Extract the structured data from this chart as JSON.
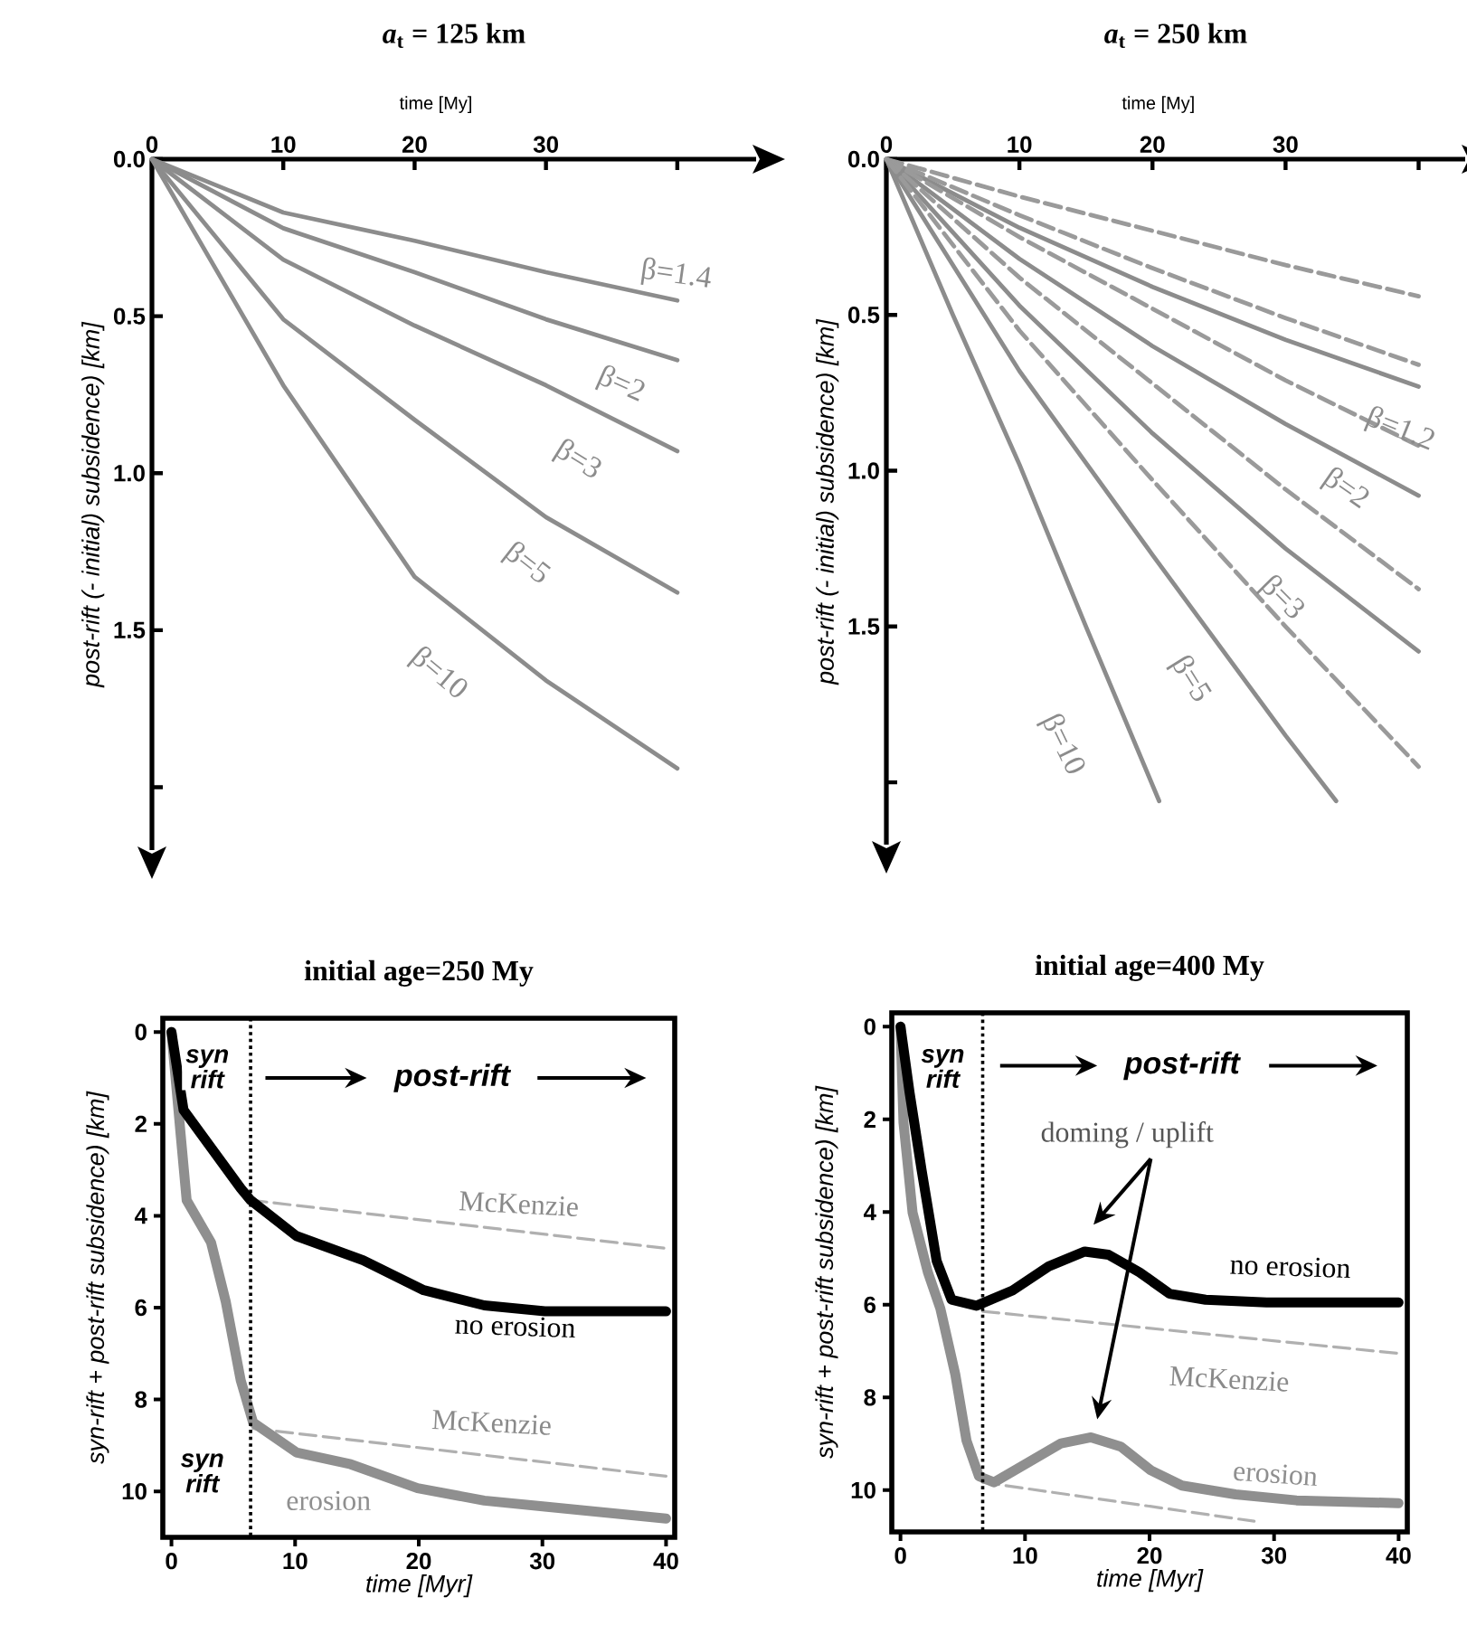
{
  "chart_data": [
    {
      "type": "line",
      "title": "*a*$_{t}$ = 125 km",
      "xlabel": "time [My]",
      "ylabel": "post-rift (- initial) subsidence) [km]",
      "xlim": [
        0,
        46
      ],
      "ylim": [
        2.2,
        0
      ],
      "xticks": [
        0,
        10,
        20,
        30,
        {
          "value": 40,
          "label": null
        }
      ],
      "yticks": [
        {
          "value": 0,
          "label": "0.0"
        },
        0.5,
        {
          "value": 1,
          "label": "1.0"
        },
        1.5,
        {
          "value": 2,
          "label": null
        }
      ],
      "x": [
        0,
        10,
        20,
        30,
        40
      ],
      "series": [
        {
          "name": "β=1.4",
          "color": "#8c8c8c",
          "values": [
            0,
            0.17,
            0.26,
            0.36,
            0.45
          ]
        },
        {
          "name": "β=2",
          "color": "#8c8c8c",
          "values": [
            0,
            0.22,
            0.36,
            0.51,
            0.64
          ]
        },
        {
          "name": "β=3",
          "color": "#8c8c8c",
          "values": [
            0,
            0.32,
            0.53,
            0.72,
            0.93
          ]
        },
        {
          "name": "β=5",
          "color": "#8c8c8c",
          "values": [
            0,
            0.51,
            0.83,
            1.14,
            1.38
          ]
        },
        {
          "name": "β=10",
          "color": "#8c8c8c",
          "values": [
            0,
            0.72,
            1.33,
            1.66,
            1.94
          ]
        }
      ]
    },
    {
      "type": "line",
      "title": "*a*$_{t}$ = 250 km",
      "xlabel": "time [My]",
      "ylabel": "post-rift (- initial) subsidence) [km]",
      "xlim": [
        0,
        43.5
      ],
      "ylim": [
        2.2,
        0
      ],
      "xticks": [
        0,
        10,
        20,
        30,
        {
          "value": 40,
          "label": null
        }
      ],
      "yticks": [
        {
          "value": 0,
          "label": "0.0"
        },
        0.5,
        {
          "value": 1,
          "label": "1.0"
        },
        1.5,
        {
          "value": 2,
          "label": null
        }
      ],
      "x": [
        0,
        10,
        20,
        30,
        40
      ],
      "series": [
        {
          "name": "β=1.2",
          "color": "#8c8c8c",
          "values": [
            0,
            0.22,
            0.41,
            0.58,
            0.73
          ]
        },
        {
          "name": "β=2",
          "color": "#8c8c8c",
          "values": [
            0,
            0.32,
            0.6,
            0.85,
            1.08
          ]
        },
        {
          "name": "β=3",
          "color": "#8c8c8c",
          "values": [
            0,
            0.47,
            0.88,
            1.25,
            1.58
          ]
        },
        {
          "name": "β=5",
          "color": "#8c8c8c",
          "x": [
            0,
            10,
            20,
            30,
            33.8
          ],
          "values": [
            0,
            0.68,
            1.27,
            1.85,
            2.06
          ]
        },
        {
          "name": "β=10",
          "color": "#8c8c8c",
          "x": [
            0,
            5,
            10,
            15,
            20.5
          ],
          "values": [
            0,
            0.5,
            0.98,
            1.5,
            2.06
          ]
        },
        {
          "color": "#9a9a9a",
          "line_style": "dashed",
          "values": [
            0,
            0.12,
            0.23,
            0.34,
            0.44
          ]
        },
        {
          "color": "#9a9a9a",
          "line_style": "dashed",
          "values": [
            0,
            0.18,
            0.35,
            0.51,
            0.66
          ]
        },
        {
          "color": "#9a9a9a",
          "line_style": "dashed",
          "values": [
            0,
            0.25,
            0.48,
            0.71,
            0.92
          ]
        },
        {
          "color": "#9a9a9a",
          "line_style": "dashed",
          "values": [
            0,
            0.38,
            0.72,
            1.06,
            1.38
          ]
        },
        {
          "color": "#9a9a9a",
          "line_style": "dashed",
          "values": [
            0,
            0.55,
            1.03,
            1.5,
            1.95
          ]
        }
      ]
    },
    {
      "type": "line",
      "title": "initial age=250 My",
      "xlabel": "time [Myr]",
      "ylabel": "syn-rift + post-rift subsidence) [km]",
      "xlim": [
        -0.7,
        40.7
      ],
      "ylim": [
        11,
        -0.3
      ],
      "xticks": [
        0,
        10,
        20,
        30,
        40
      ],
      "yticks": [
        0,
        2,
        4,
        6,
        8,
        10
      ],
      "series": [
        {
          "name": "McKenzie",
          "color": "#b0b0b0",
          "line_style": "dashed",
          "x": [
            6.4,
            40
          ],
          "values": [
            3.66,
            4.71
          ]
        },
        {
          "name": "McKenzie",
          "color": "#b0b0b0",
          "line_style": "dashed",
          "x": [
            6.6,
            40
          ],
          "values": [
            8.63,
            9.67
          ]
        },
        {
          "name": "erosion",
          "color": "#8f8f8f",
          "x": [
            0,
            0.74,
            1.23,
            3.2,
            4.4,
            5.6,
            6.6,
            10.1,
            14.5,
            19.9,
            25.3,
            30.2,
            40
          ],
          "values": [
            0,
            2.22,
            3.66,
            4.58,
            5.88,
            7.58,
            8.5,
            9.15,
            9.41,
            9.93,
            10.2,
            10.33,
            10.59
          ]
        },
        {
          "name": "no erosion",
          "color": "#000000",
          "x": [
            0,
            0.98,
            5.6,
            6.4,
            10.1,
            15.5,
            20.4,
            25.3,
            30.2,
            40
          ],
          "values": [
            0,
            1.7,
            3.4,
            3.66,
            4.44,
            4.97,
            5.62,
            5.95,
            6.08,
            6.08
          ]
        }
      ],
      "ref_lines": [
        {
          "axis": "x",
          "value": 6.4,
          "line_style": "dotted"
        }
      ],
      "annotations": [
        "syn rift",
        "post-rift",
        "syn rift"
      ]
    },
    {
      "type": "line",
      "title": "initial age=400 My",
      "xlabel": "time [Myr]",
      "ylabel": "syn-rift + post-rift subsidence) [km]",
      "xlim": [
        -0.7,
        40.7
      ],
      "ylim": [
        10.9,
        -0.3
      ],
      "xticks": [
        0,
        10,
        20,
        30,
        40
      ],
      "yticks": [
        0,
        2,
        4,
        6,
        8,
        10
      ],
      "series": [
        {
          "name": "McKenzie",
          "color": "#b0b0b0",
          "line_style": "dashed",
          "x": [
            6.6,
            40
          ],
          "values": [
            6.14,
            7.05
          ]
        },
        {
          "color": "#b0b0b0",
          "line_style": "dashed",
          "x": [
            6.6,
            28.4
          ],
          "values": [
            9.83,
            10.67
          ]
        },
        {
          "name": "erosion",
          "color": "#8f8f8f",
          "x": [
            0,
            0.24,
            0.97,
            2.2,
            3.2,
            4.4,
            5.3,
            6.3,
            7.5,
            10,
            12.9,
            15.3,
            17.7,
            20.1,
            22.6,
            26.9,
            31.8,
            40
          ],
          "values": [
            0,
            2.07,
            4.01,
            5.3,
            6.08,
            7.5,
            8.93,
            9.7,
            9.83,
            9.44,
            8.99,
            8.86,
            9.06,
            9.57,
            9.9,
            10.09,
            10.22,
            10.28
          ]
        },
        {
          "name": "no erosion",
          "color": "#000000",
          "x": [
            0,
            0.73,
            1.7,
            2.9,
            4.1,
            6.1,
            9,
            11.9,
            14.8,
            16.7,
            19.2,
            21.6,
            24.5,
            29.4,
            40
          ],
          "values": [
            0,
            1.42,
            3.1,
            5.05,
            5.89,
            6.02,
            5.69,
            5.17,
            4.85,
            4.92,
            5.3,
            5.76,
            5.89,
            5.95,
            5.95
          ]
        }
      ],
      "ref_lines": [
        {
          "axis": "x",
          "value": 6.6,
          "line_style": "dotted"
        }
      ],
      "annotations": [
        "syn rift",
        "post-rift",
        "doming / uplift"
      ]
    }
  ]
}
